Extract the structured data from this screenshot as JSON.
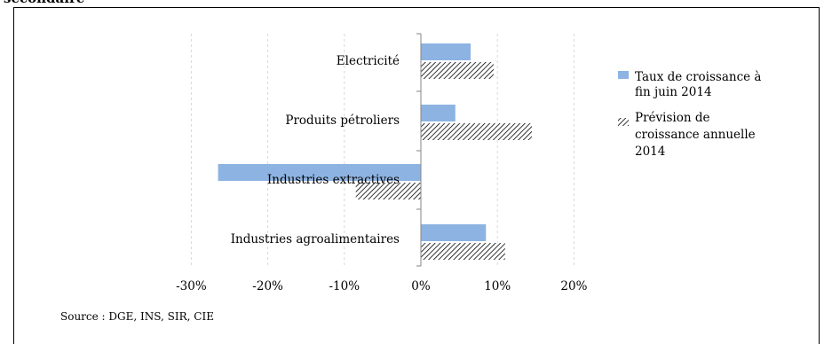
{
  "header": {
    "title": "secondaire"
  },
  "source_note": "Source : DGE,  INS, SIR, CIE",
  "colors": {
    "series_solid": "#8db3e2",
    "hatch": "#000000",
    "grid": "#d9d9d9",
    "axis": "#868686"
  },
  "chart_data": {
    "type": "bar",
    "orientation": "horizontal",
    "categories": [
      "Electricité",
      "Produits pétroliers",
      "Industries extractives",
      "Industries agroalimentaires"
    ],
    "series": [
      {
        "name": "Taux de croissance à fin juin 2014",
        "values": [
          6.5,
          4.5,
          -26.5,
          8.5
        ],
        "fill": "solid",
        "color": "#8db3e2"
      },
      {
        "name": "Prévision de croissance annuelle 2014",
        "values": [
          9.5,
          14.5,
          -8.5,
          11.0
        ],
        "fill": "hatch",
        "color": "#000000"
      }
    ],
    "xlim": [
      -30,
      20
    ],
    "xticks": [
      -30,
      -20,
      -10,
      0,
      10,
      20
    ],
    "xtick_labels": [
      "-30%",
      "-20%",
      "-10%",
      "0%",
      "10%",
      "20%"
    ],
    "xlabel": "",
    "ylabel": "",
    "grid": "vertical",
    "legend": "right"
  }
}
